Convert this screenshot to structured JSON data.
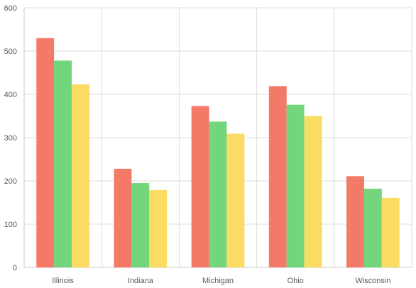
{
  "chart_data": {
    "type": "bar",
    "categories": [
      "Illinois",
      "Indiana",
      "Michigan",
      "Ohio",
      "Wisconsin"
    ],
    "series": [
      {
        "values": [
          530,
          228,
          373,
          419,
          211
        ],
        "color": "#f47a68"
      },
      {
        "values": [
          478,
          195,
          337,
          376,
          182
        ],
        "color": "#73d67d"
      },
      {
        "values": [
          423,
          179,
          309,
          350,
          161
        ],
        "color": "#fadc63"
      }
    ],
    "ylim": [
      0,
      600
    ],
    "yticks": [
      "0",
      "100",
      "200",
      "300",
      "400",
      "500",
      "600"
    ],
    "grid": true,
    "legend": "none"
  }
}
